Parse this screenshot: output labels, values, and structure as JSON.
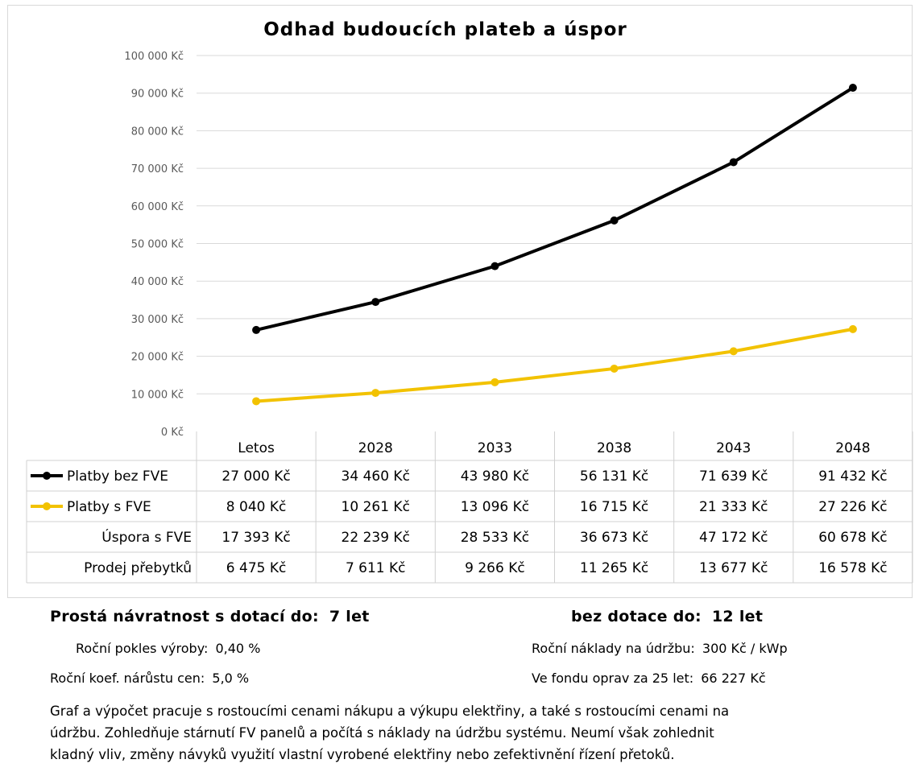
{
  "chart_data": {
    "type": "line",
    "title": "Odhad budoucích plateb a úspor",
    "categories": [
      "Letos",
      "2028",
      "2033",
      "2038",
      "2043",
      "2048"
    ],
    "y_ticks": [
      "0 Kč",
      "10 000 Kč",
      "20 000 Kč",
      "30 000 Kč",
      "40 000 Kč",
      "50 000 Kč",
      "60 000 Kč",
      "70 000 Kč",
      "80 000 Kč",
      "90 000 Kč",
      "100 000 Kč"
    ],
    "ylim": [
      0,
      100000
    ],
    "grid": true,
    "series": [
      {
        "name": "Platby bez FVE",
        "color": "#000000",
        "values": [
          27000,
          34460,
          43980,
          56131,
          71639,
          91432
        ],
        "labels": [
          "27 000 Kč",
          "34 460 Kč",
          "43 980 Kč",
          "56 131 Kč",
          "71 639 Kč",
          "91 432 Kč"
        ]
      },
      {
        "name": "Platby s FVE",
        "color": "#f2c200",
        "values": [
          8040,
          10261,
          13096,
          16715,
          21333,
          27226
        ],
        "labels": [
          "8 040 Kč",
          "10 261 Kč",
          "13 096 Kč",
          "16 715 Kč",
          "21 333 Kč",
          "27 226 Kč"
        ]
      }
    ],
    "table_rows": [
      {
        "name": "Úspora s FVE",
        "values": [
          17393,
          22239,
          28533,
          36673,
          47172,
          60678
        ],
        "labels": [
          "17 393 Kč",
          "22 239 Kč",
          "28 533 Kč",
          "36 673 Kč",
          "47 172 Kč",
          "60 678 Kč"
        ]
      },
      {
        "name": "Prodej přebytků",
        "values": [
          6475,
          7611,
          9266,
          11265,
          13677,
          16578
        ],
        "labels": [
          "6 475 Kč",
          "7 611 Kč",
          "9 266 Kč",
          "11 265 Kč",
          "13 677 Kč",
          "16 578 Kč"
        ]
      }
    ]
  },
  "summary": {
    "payback_with_label": "Prostá návratnost s dotací do:",
    "payback_with_value": "7 let",
    "payback_without_label": "bez dotace do:",
    "payback_without_value": "12 let",
    "decline_label": "Roční pokles výroby:",
    "decline_value": "0,40 %",
    "price_label": "Roční koef. nárůstu cen:",
    "price_value": "5,0 %",
    "maint_label": "Roční náklady na údržbu:",
    "maint_value": "300 Kč / kWp",
    "fund_label": "Ve fondu oprav za 25 let:",
    "fund_value": "66 227 Kč"
  },
  "description": [
    "Graf a výpočet pracuje s rostoucími cenami nákupu a výkupu elektřiny, a také s rostoucími cenami na",
    "údržbu. Zohledňuje stárnutí FV panelů a počítá s náklady na údržbu systému. Neumí však zohlednit",
    "kladný vliv, změny návyků využití vlastní vyrobené elektřiny nebo zefektivnění řízení přetoků."
  ]
}
